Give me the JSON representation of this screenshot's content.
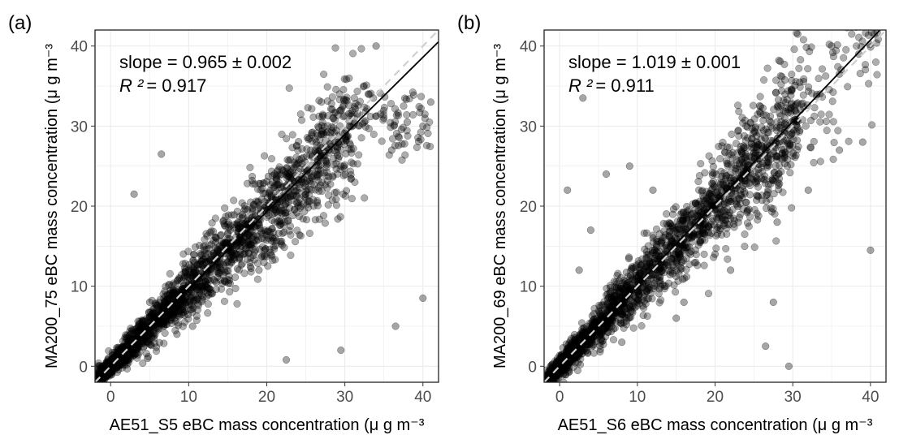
{
  "chart_data": [
    {
      "type": "scatter",
      "panel_label": "(a)",
      "xlabel": "AE51_S5 eBC mass concentration (μ g m⁻³",
      "ylabel": "MA200_75 eBC mass concentration (μ g m⁻³",
      "xlim": [
        -2,
        42
      ],
      "ylim": [
        -2,
        42
      ],
      "x_ticks": [
        "0",
        "10",
        "20",
        "30",
        "40"
      ],
      "y_ticks": [
        "0",
        "10",
        "20",
        "30",
        "40"
      ],
      "grid": true,
      "slope_text": "slope = 0.965 ± 0.002",
      "r2_label": "R ²",
      "r2_value": "= 0.917",
      "fit_line": {
        "slope": 0.965,
        "intercept": 0.0
      },
      "identity_line": {
        "slope": 1.0,
        "intercept": 0.0
      },
      "sample_points": {
        "x": [
          0.5,
          1.2,
          2.0,
          3.1,
          4.0,
          5.2,
          6.0,
          7.1,
          8.0,
          9.2,
          10.0,
          11.5,
          12.8,
          14.0,
          15.3,
          16.5,
          18.0,
          19.2,
          20.5,
          22.0,
          23.5,
          25.0,
          26.5,
          28.0,
          30.0,
          32.5,
          35.0,
          38.0,
          40.0,
          41.0,
          5.0,
          8.5,
          13.5,
          17.0,
          21.0,
          24.0,
          27.0,
          29.5,
          33.0,
          36.0,
          3.0,
          6.5,
          10.5,
          19.0,
          26.0,
          34.0,
          40.0,
          36.5,
          29.5,
          22.5,
          15.0
        ],
        "y": [
          0.2,
          1.5,
          1.8,
          2.5,
          3.7,
          5.0,
          6.4,
          6.8,
          7.5,
          9.0,
          10.2,
          11.0,
          12.1,
          13.5,
          14.8,
          16.0,
          17.5,
          18.3,
          19.8,
          21.0,
          22.0,
          24.0,
          25.5,
          27.0,
          28.5,
          30.5,
          31.0,
          30.5,
          30.0,
          33.0,
          8.0,
          4.0,
          16.0,
          14.0,
          24.0,
          20.0,
          29.0,
          25.0,
          34.0,
          27.0,
          21.5,
          26.5,
          5.0,
          12.0,
          20.0,
          40.0,
          8.5,
          5.0,
          2.0,
          0.8,
          16.5
        ]
      }
    },
    {
      "type": "scatter",
      "panel_label": "(b)",
      "xlabel": "AE51_S6 eBC mass concentration (μ g m⁻³",
      "ylabel": "MA200_69 eBC mass concentration (μ g m⁻³",
      "xlim": [
        -2,
        42
      ],
      "ylim": [
        -2,
        42
      ],
      "x_ticks": [
        "0",
        "10",
        "20",
        "30",
        "40"
      ],
      "y_ticks": [
        "0",
        "10",
        "20",
        "30",
        "40"
      ],
      "grid": true,
      "slope_text": "slope = 1.019 ± 0.001",
      "r2_label": "R ²",
      "r2_value": "= 0.911",
      "fit_line": {
        "slope": 1.019,
        "intercept": 0.0
      },
      "identity_line": {
        "slope": 1.0,
        "intercept": 0.0
      },
      "sample_points": {
        "x": [
          0.3,
          1.0,
          2.2,
          3.0,
          4.1,
          5.0,
          6.2,
          7.0,
          8.3,
          9.0,
          10.5,
          12.0,
          13.2,
          14.5,
          16.0,
          17.5,
          19.0,
          20.5,
          22.0,
          23.5,
          25.0,
          27.0,
          29.0,
          31.0,
          33.5,
          36.0,
          38.5,
          40.5,
          1.0,
          2.5,
          4.0,
          8.0,
          12.0,
          16.0,
          20.0,
          24.0,
          28.0,
          32.0,
          36.0,
          40.0,
          3.0,
          9.0,
          15.0,
          22.0,
          27.5,
          29.5,
          26.5,
          35.0,
          39.0,
          6.0
        ],
        "y": [
          0.5,
          1.5,
          2.0,
          3.3,
          4.0,
          5.4,
          6.0,
          7.5,
          8.0,
          9.5,
          10.8,
          12.2,
          13.0,
          15.0,
          16.5,
          18.0,
          19.2,
          21.0,
          22.5,
          24.0,
          25.5,
          27.5,
          29.5,
          32.0,
          34.0,
          36.5,
          39.0,
          41.5,
          22.0,
          12.0,
          17.0,
          3.0,
          22.0,
          8.0,
          14.0,
          30.0,
          18.0,
          22.0,
          27.0,
          14.5,
          33.5,
          25.0,
          6.0,
          12.0,
          8.0,
          0.0,
          2.5,
          40.0,
          28.0,
          24.0
        ]
      }
    }
  ]
}
